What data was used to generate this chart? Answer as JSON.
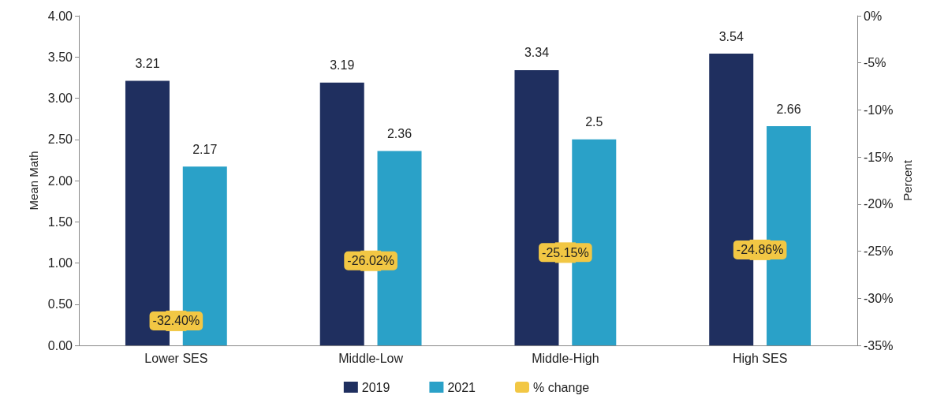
{
  "chart_data": {
    "type": "bar",
    "categories": [
      "Lower SES",
      "Middle-Low",
      "Middle-High",
      "High SES"
    ],
    "series": [
      {
        "name": "2019",
        "color": "#1f2f5f",
        "values": [
          3.21,
          3.19,
          3.34,
          3.54
        ]
      },
      {
        "name": "2021",
        "color": "#2aa1c8",
        "values": [
          2.17,
          2.36,
          2.5,
          2.66
        ]
      },
      {
        "name": "% change",
        "type": "scatter",
        "axis": "y2",
        "color": "#f2c744",
        "marker": "square",
        "values": [
          -32.4,
          -26.02,
          -25.15,
          -24.86
        ],
        "value_labels": [
          "-32.40%",
          "-26.02%",
          "-25.15%",
          "-24.86%"
        ]
      }
    ],
    "data_labels": true,
    "ylabel": "Mean Math",
    "y2label": "Percent",
    "ylim": [
      0,
      4
    ],
    "yticks": [
      {
        "value": 0,
        "label": "0.00"
      },
      {
        "value": 0.5,
        "label": "0.50"
      },
      {
        "value": 1,
        "label": "1.00"
      },
      {
        "value": 1.5,
        "label": "1.50"
      },
      {
        "value": 2,
        "label": "2.00"
      },
      {
        "value": 2.5,
        "label": "2.50"
      },
      {
        "value": 3,
        "label": "3.00"
      },
      {
        "value": 3.5,
        "label": "3.50"
      },
      {
        "value": 4,
        "label": "4.00"
      }
    ],
    "y2lim": [
      -35,
      0
    ],
    "y2ticks": [
      {
        "value": -35,
        "label": "-35%"
      },
      {
        "value": -30,
        "label": "-30%"
      },
      {
        "value": -25,
        "label": "-25%"
      },
      {
        "value": -20,
        "label": "-20%"
      },
      {
        "value": -15,
        "label": "-15%"
      },
      {
        "value": -10,
        "label": "-10%"
      },
      {
        "value": -5,
        "label": "-5%"
      },
      {
        "value": 0,
        "label": "0%"
      }
    ],
    "grid": false,
    "legend": "bottom"
  }
}
